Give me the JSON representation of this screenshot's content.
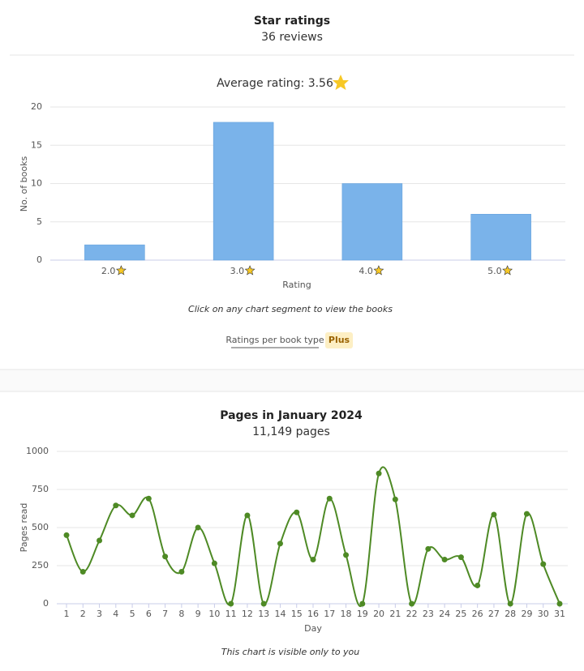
{
  "star_section": {
    "title": "Star ratings",
    "subtitle": "36 reviews",
    "note": "Click on any chart segment to view the books",
    "link": "Ratings per book type",
    "badge": "Plus"
  },
  "pages_section": {
    "title": "Pages in January 2024",
    "subtitle": "11,149 pages",
    "note": "This chart is visible only to you"
  },
  "chart_data": [
    {
      "type": "bar",
      "title": "Average rating: 3.56",
      "categories": [
        "2.0",
        "3.0",
        "4.0",
        "5.0"
      ],
      "values": [
        2,
        18,
        10,
        6
      ],
      "xlabel": "Rating",
      "ylabel": "No. of books",
      "ylim": [
        0,
        20
      ],
      "yticks": [
        0,
        5,
        10,
        15,
        20
      ],
      "color": "#7ab3ea",
      "grid": true
    },
    {
      "type": "line",
      "x": [
        1,
        2,
        3,
        4,
        5,
        6,
        7,
        8,
        9,
        10,
        11,
        12,
        13,
        14,
        15,
        16,
        17,
        18,
        19,
        20,
        21,
        22,
        23,
        24,
        25,
        26,
        27,
        28,
        29,
        30,
        31
      ],
      "values": [
        450,
        210,
        415,
        645,
        580,
        690,
        310,
        210,
        500,
        265,
        0,
        580,
        0,
        395,
        600,
        290,
        690,
        320,
        0,
        855,
        685,
        0,
        360,
        290,
        305,
        120,
        585,
        0,
        590,
        260,
        0
      ],
      "xlabel": "Day",
      "ylabel": "Pages read",
      "xlim": [
        1,
        31
      ],
      "ylim": [
        0,
        1000
      ],
      "yticks": [
        0,
        250,
        500,
        750,
        1000
      ],
      "color": "#4e8a25",
      "grid": true
    }
  ]
}
